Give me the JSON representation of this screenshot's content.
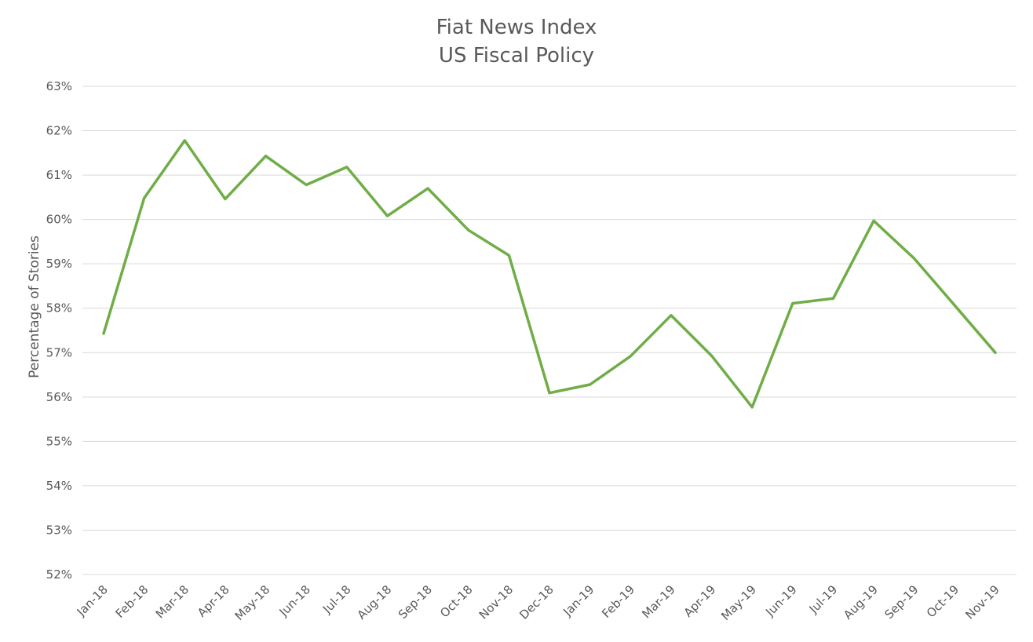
{
  "chart_data": {
    "type": "line",
    "title": "Fiat News Index",
    "subtitle": "US Fiscal Policy",
    "xlabel": "",
    "ylabel": "Percentage of Stories",
    "categories": [
      "Jan-18",
      "Feb-18",
      "Mar-18",
      "Apr-18",
      "May-18",
      "Jun-18",
      "Jul-18",
      "Aug-18",
      "Sep-18",
      "Oct-18",
      "Nov-18",
      "Dec-18",
      "Jan-19",
      "Feb-19",
      "Mar-19",
      "Apr-19",
      "May-19",
      "Jun-19",
      "Jul-19",
      "Aug-19",
      "Sep-19",
      "Oct-19",
      "Nov-19"
    ],
    "series": [
      {
        "name": "",
        "color": "#70ad47",
        "values": [
          57.43,
          60.48,
          61.78,
          60.46,
          61.43,
          60.78,
          61.18,
          60.08,
          60.7,
          59.76,
          59.19,
          56.09,
          56.28,
          56.92,
          57.84,
          56.93,
          55.77,
          58.11,
          58.22,
          59.97,
          59.12,
          58.06,
          57.0
        ]
      }
    ],
    "ylim": [
      52,
      63
    ],
    "yticks": [
      "52%",
      "53%",
      "54%",
      "55%",
      "56%",
      "57%",
      "58%",
      "59%",
      "60%",
      "61%",
      "62%",
      "63%"
    ],
    "grid": true,
    "legend": "none"
  }
}
